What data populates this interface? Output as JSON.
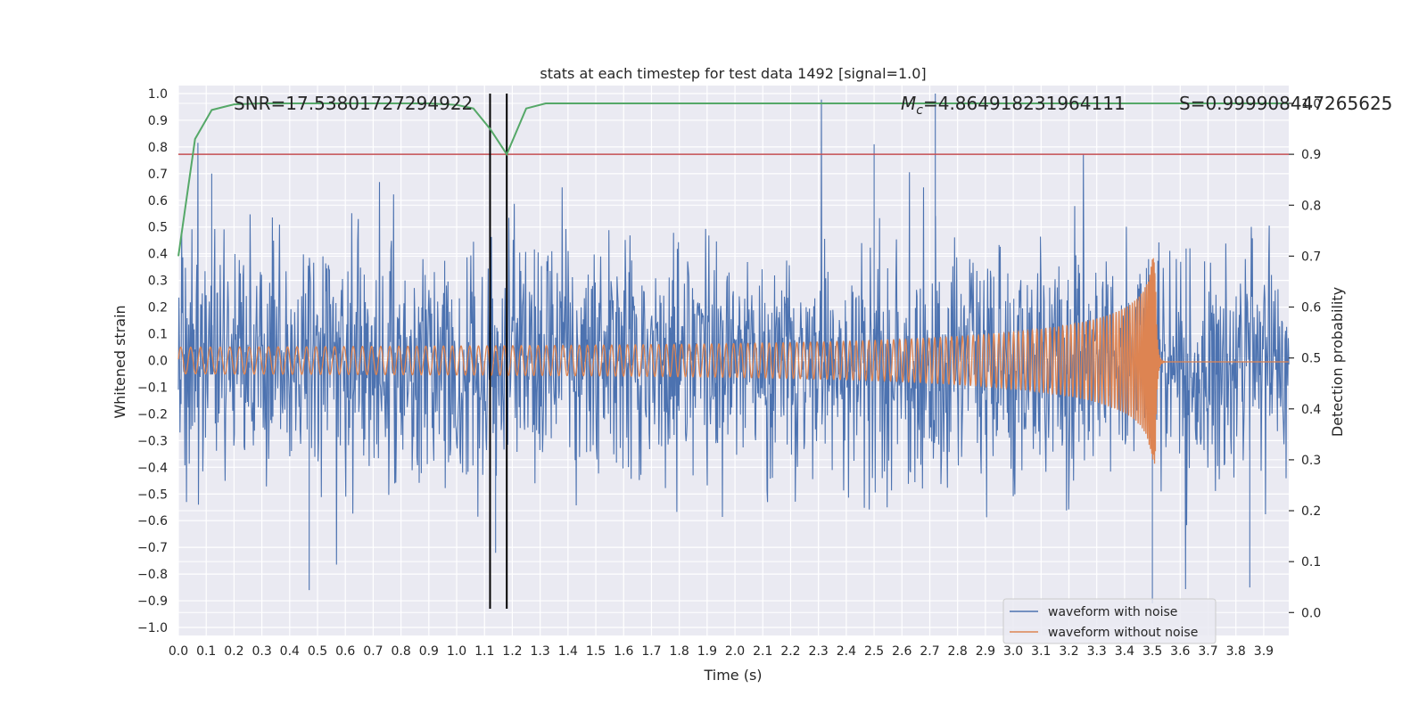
{
  "chart_data": {
    "type": "line",
    "title": "stats at each timestep for test data 1492 [signal=1.0]",
    "xlabel": "Time (s)",
    "ylabel": "Whitened strain",
    "y2label": "Detection probability",
    "xlim": [
      0.0,
      3.99
    ],
    "ylim": [
      -1.03,
      1.03
    ],
    "y2lim": [
      -0.045,
      1.035
    ],
    "xticks": [
      "0.0",
      "0.1",
      "0.2",
      "0.3",
      "0.4",
      "0.5",
      "0.6",
      "0.7",
      "0.8",
      "0.9",
      "1.0",
      "1.1",
      "1.2",
      "1.3",
      "1.4",
      "1.5",
      "1.6",
      "1.7",
      "1.8",
      "1.9",
      "2.0",
      "2.1",
      "2.2",
      "2.3",
      "2.4",
      "2.5",
      "2.6",
      "2.7",
      "2.8",
      "2.9",
      "3.0",
      "3.1",
      "3.2",
      "3.3",
      "3.4",
      "3.5",
      "3.6",
      "3.7",
      "3.8",
      "3.9"
    ],
    "yticks": [
      "1.0",
      "0.9",
      "0.8",
      "0.7",
      "0.6",
      "0.5",
      "0.4",
      "0.3",
      "0.2",
      "0.1",
      "0.0",
      "−0.1",
      "−0.2",
      "−0.3",
      "−0.4",
      "−0.5",
      "−0.6",
      "−0.7",
      "−0.8",
      "−0.9",
      "−1.0"
    ],
    "y2ticks": [
      "1.0",
      "0.9",
      "0.8",
      "0.7",
      "0.6",
      "0.5",
      "0.4",
      "0.3",
      "0.2",
      "0.1",
      "0.0"
    ],
    "annotations": {
      "snr": "SNR=17.538017272949​22",
      "mc_symbol": "M",
      "mc_sub": "c",
      "mc_value": "=4.864918231964111",
      "s": "S=0.999908447265625"
    },
    "series": [
      {
        "name": "waveform with noise",
        "color": "#4c72b0",
        "kind": "noise",
        "sample_rate": 512,
        "amplitude_envelope": 0.38,
        "notable_peaks": [
          {
            "x": 0.12,
            "y": 0.7
          },
          {
            "x": 0.47,
            "y": -0.86
          },
          {
            "x": 1.14,
            "y": -0.72
          },
          {
            "x": 2.5,
            "y": 0.81
          },
          {
            "x": 2.72,
            "y": 1.0
          },
          {
            "x": 3.5,
            "y": -0.91
          },
          {
            "x": 3.85,
            "y": -0.85
          }
        ]
      },
      {
        "name": "waveform without noise",
        "color": "#dd8452",
        "kind": "chirp",
        "merger_time": 3.51,
        "start_frequency": 28,
        "start_amplitude": 0.05,
        "peak_amplitude": 0.39,
        "ringdown_offset": -0.005
      },
      {
        "name": "detection probability",
        "color": "#55a868",
        "axis": "right",
        "x": [
          0.0,
          0.06,
          0.12,
          0.2,
          0.3,
          0.5,
          0.7,
          0.9,
          1.0,
          1.06,
          1.12,
          1.18,
          1.25,
          1.32,
          1.6,
          2.0,
          3.0,
          3.99
        ],
        "y": [
          0.7,
          0.93,
          0.987,
          0.998,
          1.0,
          1.0,
          1.0,
          1.0,
          0.997,
          0.99,
          0.95,
          0.9,
          0.99,
          1.0,
          1.0,
          1.0,
          1.0,
          1.0
        ]
      }
    ],
    "threshold_line": {
      "value": 0.9,
      "axis": "right",
      "color": "#c44e52"
    },
    "marker_lines": {
      "x": [
        1.12,
        1.18
      ],
      "y_from": -0.93,
      "y_to": 1.0,
      "color": "#000000"
    },
    "legend": {
      "placement": "lower-right",
      "entries": [
        {
          "label": "waveform with noise",
          "color": "#4c72b0"
        },
        {
          "label": "waveform without noise",
          "color": "#dd8452"
        }
      ]
    },
    "style": {
      "background": "#eaeaf2",
      "grid": true,
      "grid_color": "#ffffff"
    }
  }
}
